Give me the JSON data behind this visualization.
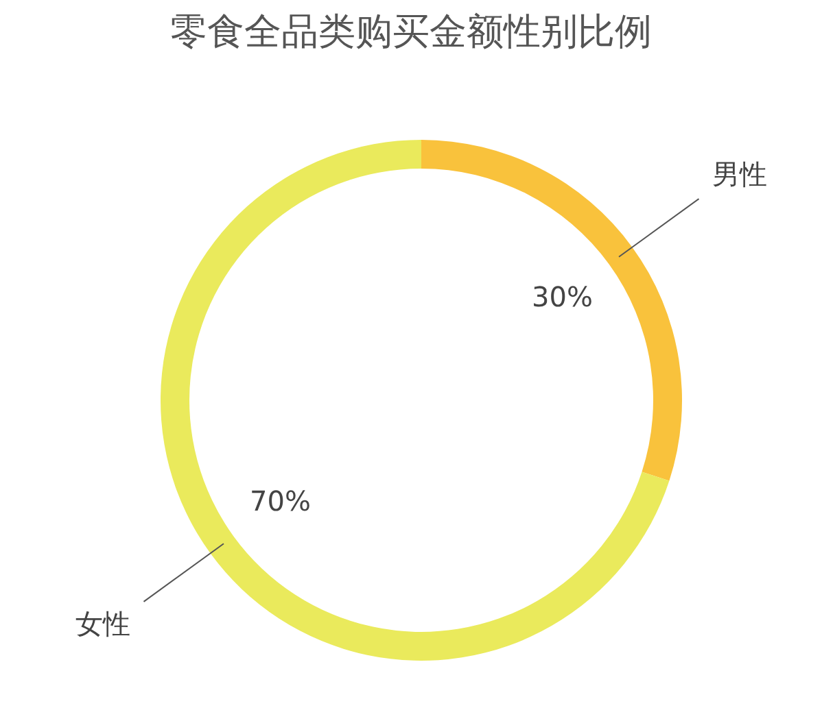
{
  "chart_data": {
    "type": "donut",
    "title": "零食全品类购买金额性别比例",
    "categories": [
      "男性",
      "女性"
    ],
    "values": [
      30,
      70
    ],
    "colors": [
      "#f9c23c",
      "#eaea5c"
    ],
    "value_labels": [
      "30%",
      "70%"
    ],
    "legend": false
  }
}
